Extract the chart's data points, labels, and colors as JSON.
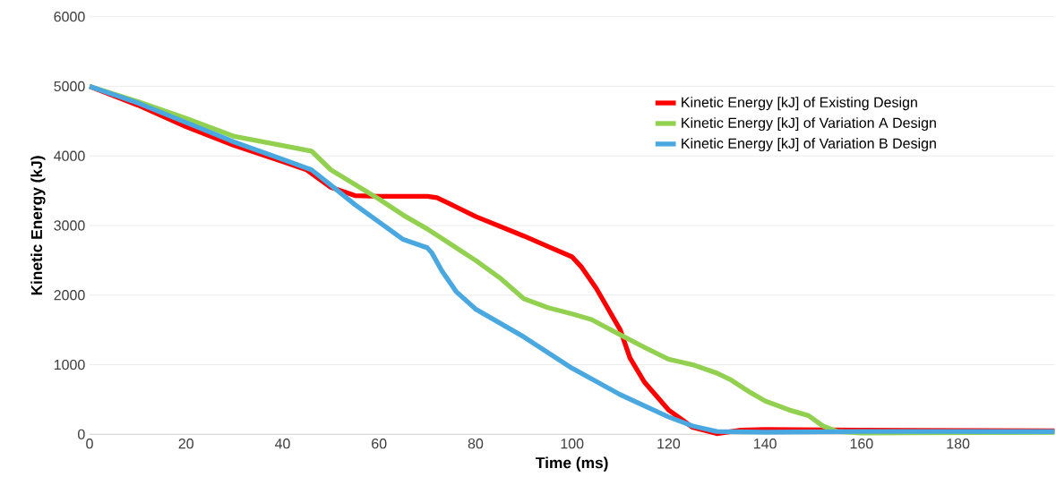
{
  "chart_data": {
    "type": "line",
    "xlabel": "Time (ms)",
    "ylabel": "Kinetic Energy (kJ)",
    "xlim": [
      0,
      200
    ],
    "ylim": [
      0,
      6000
    ],
    "xticks": [
      0,
      20,
      40,
      60,
      80,
      100,
      120,
      140,
      160,
      180
    ],
    "yticks": [
      0,
      1000,
      2000,
      3000,
      4000,
      5000,
      6000
    ],
    "grid": "y",
    "legend": "top right",
    "marker": "none",
    "line_style": "solid",
    "series": [
      {
        "name": "Kinetic Energy [kJ] of Existing Design",
        "color": "#ff0000",
        "x": [
          0,
          10,
          20,
          30,
          40,
          45,
          50,
          55,
          60,
          65,
          70,
          72,
          75,
          80,
          90,
          95,
          100,
          102,
          105,
          110,
          112,
          115,
          120,
          125,
          130,
          135,
          140,
          160,
          200
        ],
        "values": [
          5000,
          4730,
          4420,
          4150,
          3920,
          3800,
          3550,
          3430,
          3420,
          3420,
          3420,
          3400,
          3300,
          3130,
          2850,
          2700,
          2550,
          2400,
          2100,
          1500,
          1100,
          750,
          350,
          100,
          10,
          60,
          70,
          60,
          50
        ]
      },
      {
        "name": "Kinetic Energy [kJ] of Variation A Design",
        "color": "#92d050",
        "x": [
          0,
          10,
          20,
          30,
          40,
          46,
          50,
          60,
          65,
          70,
          80,
          85,
          90,
          95,
          100,
          104,
          110,
          115,
          120,
          125,
          130,
          133,
          137,
          140,
          145,
          149,
          152,
          155,
          160,
          200
        ],
        "values": [
          5000,
          4780,
          4540,
          4280,
          4150,
          4070,
          3800,
          3380,
          3150,
          2950,
          2500,
          2250,
          1950,
          1820,
          1730,
          1650,
          1430,
          1250,
          1080,
          1000,
          880,
          780,
          600,
          480,
          350,
          270,
          120,
          40,
          20,
          30
        ]
      },
      {
        "name": "Kinetic Energy [kJ] of Variation B Design",
        "color": "#4aa8e0",
        "x": [
          0,
          10,
          20,
          30,
          40,
          46,
          50,
          55,
          60,
          65,
          70,
          71,
          73,
          76,
          80,
          90,
          100,
          110,
          120,
          125,
          130,
          140,
          160,
          200
        ],
        "values": [
          5000,
          4760,
          4480,
          4200,
          3950,
          3800,
          3580,
          3300,
          3050,
          2800,
          2680,
          2600,
          2350,
          2050,
          1800,
          1400,
          950,
          570,
          250,
          120,
          40,
          30,
          40,
          40
        ]
      }
    ]
  }
}
